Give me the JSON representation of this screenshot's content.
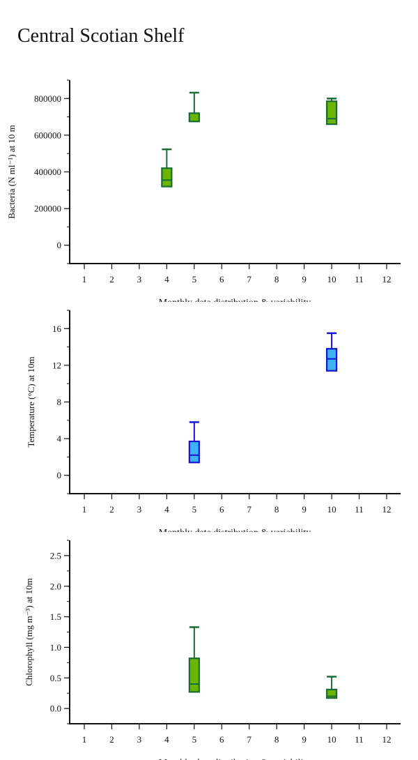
{
  "page_title": "Central Scotian Shelf",
  "chart_data": [
    {
      "type": "box",
      "xlabel": "Monthly data distribution & variability",
      "ylabel": "Bacteria (N ml⁻¹) at 10 m",
      "categories": [
        "1",
        "2",
        "3",
        "4",
        "5",
        "6",
        "7",
        "8",
        "9",
        "10",
        "11",
        "12"
      ],
      "ylim": [
        -100000,
        900000
      ],
      "yticks": [
        0,
        200000,
        400000,
        600000,
        800000
      ],
      "ytick_labels": [
        "0",
        "200000",
        "400000",
        "600000",
        "800000"
      ],
      "minor_step": 100000,
      "fill": "#6ab500",
      "stroke": "#1a6b35",
      "boxes": [
        {
          "month": 4,
          "whisker_high": 523000,
          "q3": 420000,
          "median": 355000,
          "q1": 320000
        },
        {
          "month": 5,
          "whisker_high": 832000,
          "q3": 720000,
          "median": 675000,
          "q1": 675000
        },
        {
          "month": 10,
          "whisker_high": 800000,
          "q3": 785000,
          "median": 690000,
          "q1": 660000
        }
      ]
    },
    {
      "type": "box",
      "xlabel": "Monthly data distribution & variability",
      "ylabel": "Temperature (°C) at 10m",
      "categories": [
        "1",
        "2",
        "3",
        "4",
        "5",
        "6",
        "7",
        "8",
        "9",
        "10",
        "11",
        "12"
      ],
      "ylim": [
        -2,
        18
      ],
      "yticks": [
        0,
        4,
        8,
        12,
        16
      ],
      "ytick_labels": [
        "0",
        "4",
        "8",
        "12",
        "16"
      ],
      "minor_step": 2,
      "fill": "#3db2f5",
      "stroke": "#1414d2",
      "boxes": [
        {
          "month": 5,
          "whisker_high": 5.8,
          "q3": 3.7,
          "median": 2.2,
          "q1": 1.4
        },
        {
          "month": 10,
          "whisker_high": 15.5,
          "q3": 13.8,
          "median": 12.7,
          "q1": 11.4
        }
      ]
    },
    {
      "type": "box",
      "xlabel": "Monthly data distribution & variability",
      "ylabel": "Chlorophyll (mg m⁻³) at 10m",
      "categories": [
        "1",
        "2",
        "3",
        "4",
        "5",
        "6",
        "7",
        "8",
        "9",
        "10",
        "11",
        "12"
      ],
      "ylim": [
        -0.25,
        2.75
      ],
      "yticks": [
        0,
        0.5,
        1.0,
        1.5,
        2.0,
        2.5
      ],
      "ytick_labels": [
        "0.0",
        "0.5",
        "1.0",
        "1.5",
        "2.0",
        "2.5"
      ],
      "minor_step": 0.25,
      "fill": "#6ab500",
      "stroke": "#1a6b35",
      "boxes": [
        {
          "month": 5,
          "whisker_high": 1.33,
          "q3": 0.82,
          "median": 0.4,
          "q1": 0.27
        },
        {
          "month": 10,
          "whisker_high": 0.52,
          "q3": 0.31,
          "median": 0.2,
          "q1": 0.17
        }
      ]
    }
  ]
}
